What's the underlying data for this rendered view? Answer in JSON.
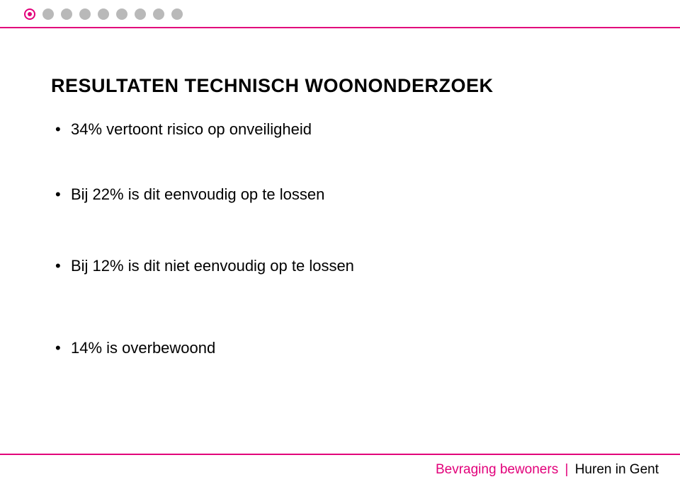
{
  "colors": {
    "magenta": "#e2007a",
    "grey": "#b9b9b9",
    "ink": "#000000"
  },
  "progress": {
    "total": 9,
    "active_index": 0
  },
  "title": "RESULTATEN TECHNISCH WOONONDERZOEK",
  "bullets": [
    "34% vertoont risico op onveiligheid",
    "Bij 22% is dit eenvoudig op te lossen",
    "Bij 12% is dit niet eenvoudig op te lossen",
    "14% is overbewoond"
  ],
  "footer": {
    "left": "Bevraging bewoners",
    "separator": "|",
    "right": "Huren in Gent"
  }
}
